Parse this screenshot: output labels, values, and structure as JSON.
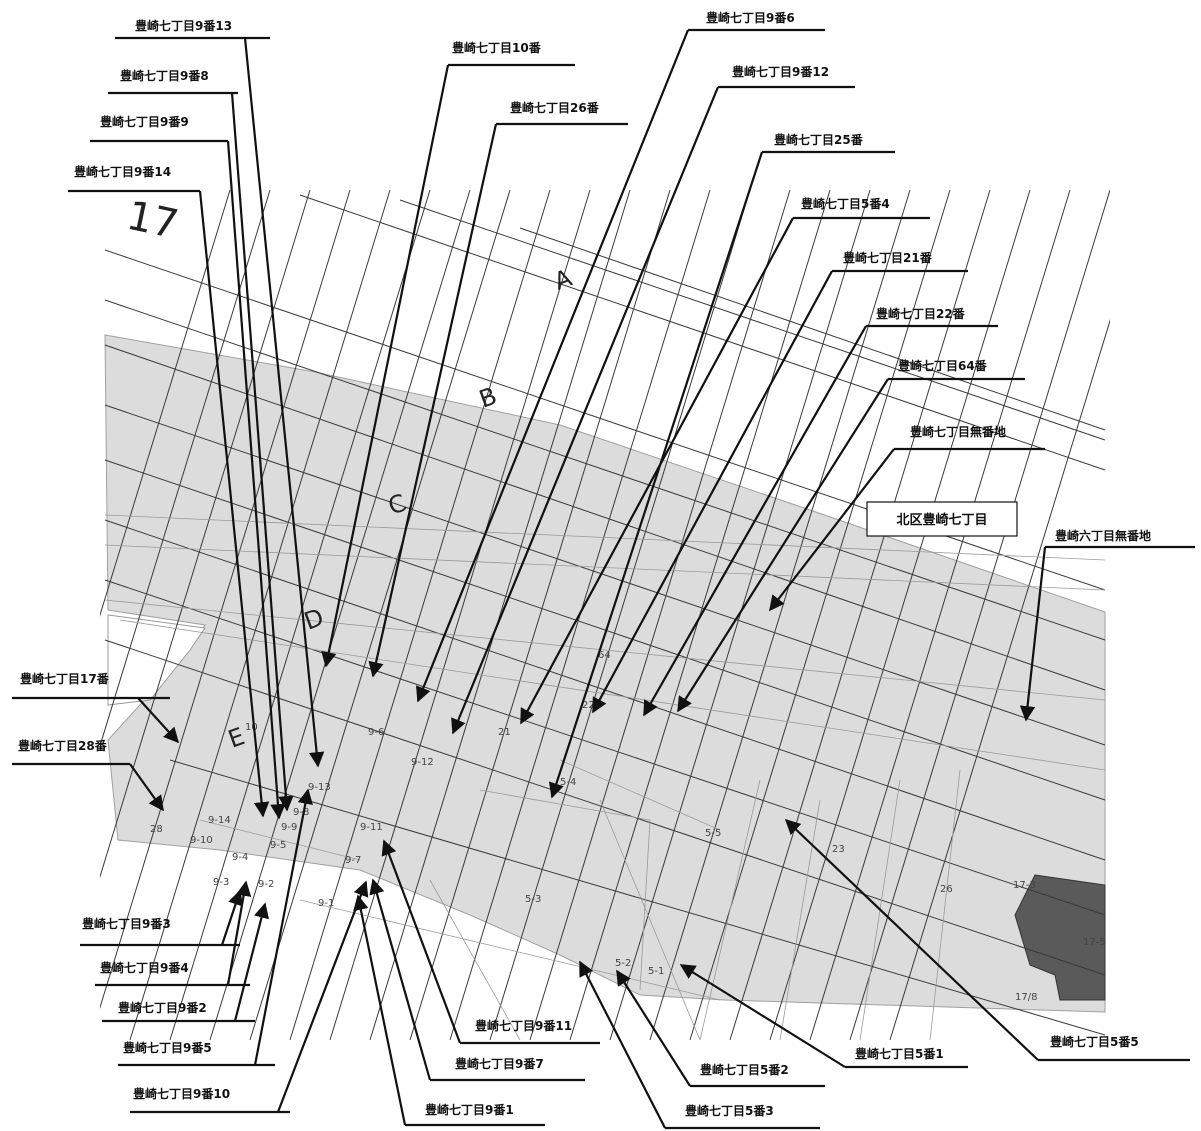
{
  "map": {
    "district_box": "北区豊崎七丁目",
    "zone_letters": [
      "A",
      "B",
      "C",
      "D",
      "E"
    ],
    "big_number": "17",
    "callouts": [
      "豊崎七丁目9番13",
      "豊崎七丁目10番",
      "豊崎七丁目9番6",
      "豊崎七丁目9番8",
      "豊崎七丁目26番",
      "豊崎七丁目9番12",
      "豊崎七丁目9番9",
      "豊崎七丁目25番",
      "豊崎七丁目9番14",
      "豊崎七丁目5番4",
      "豊崎七丁目21番",
      "豊崎七丁目22番",
      "豊崎七丁目64番",
      "豊崎七丁目無番地",
      "豊崎六丁目無番地",
      "豊崎七丁目17番",
      "豊崎七丁目28番",
      "豊崎七丁目9番3",
      "豊崎七丁目9番4",
      "豊崎七丁目9番2",
      "豊崎七丁目9番5",
      "豊崎七丁目9番10",
      "豊崎七丁目9番1",
      "豊崎七丁目9番7",
      "豊崎七丁目9番11",
      "豊崎七丁目5番5",
      "豊崎七丁目5番1",
      "豊崎七丁目5番2",
      "豊崎七丁目5番3"
    ],
    "plot_labels": [
      "9-6",
      "9-12",
      "9-13",
      "9-8",
      "9-9",
      "9-14",
      "9-10",
      "9-5",
      "9-4",
      "9-3",
      "9-2",
      "9-11",
      "9-7",
      "9-1",
      "5-4",
      "5-5",
      "5-3",
      "5-2",
      "5-1",
      "22",
      "23",
      "21",
      "26",
      "10",
      "28",
      "17-3",
      "17-5",
      "17/8",
      "64"
    ]
  }
}
